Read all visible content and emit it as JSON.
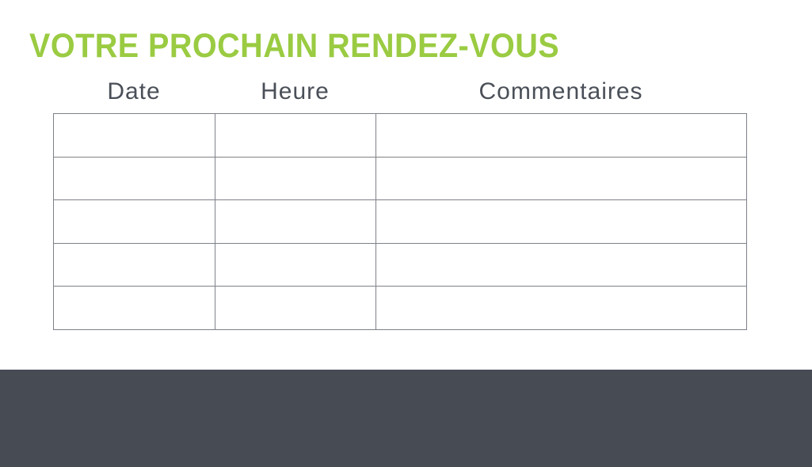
{
  "page": {
    "title": "VOTRE PROCHAIN RENDEZ-VOUS"
  },
  "table": {
    "headers": [
      "Date",
      "Heure",
      "Commentaires"
    ],
    "rows": [
      [
        "",
        "",
        ""
      ],
      [
        "",
        "",
        ""
      ],
      [
        "",
        "",
        ""
      ],
      [
        "",
        "",
        ""
      ],
      [
        "",
        "",
        ""
      ]
    ]
  },
  "colors": {
    "accent_green": "#9ACB42",
    "header_text": "#4A4F58",
    "table_border": "#7D8188",
    "footer_bg": "#474B54",
    "page_bg": "#FFFFFF"
  }
}
